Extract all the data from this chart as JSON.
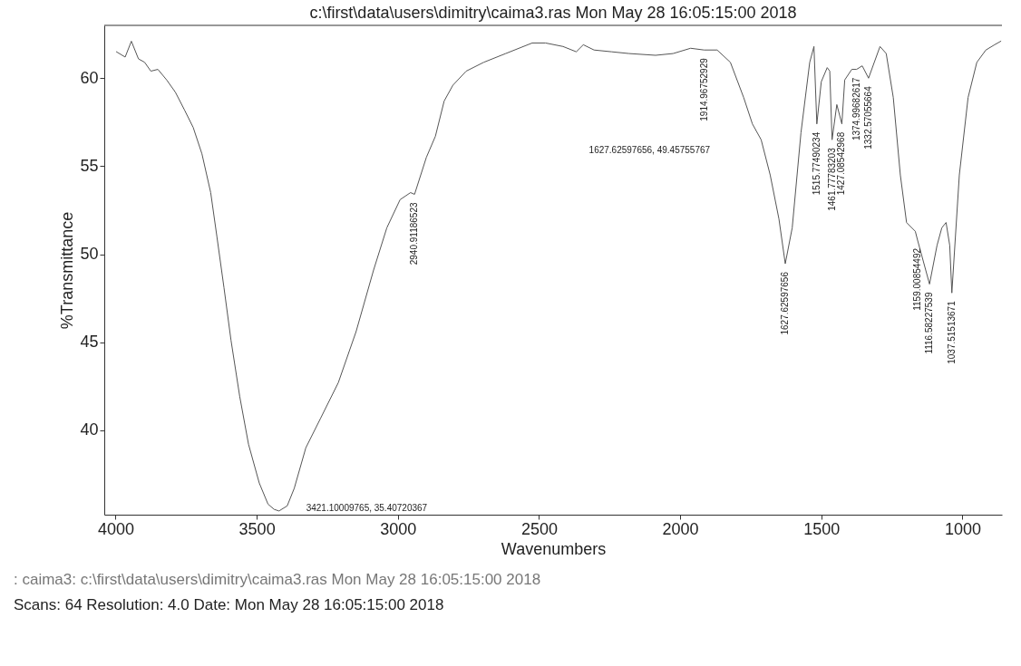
{
  "chart_data": {
    "type": "line",
    "title": "c:\\first\\data\\users\\dimitry\\caima3.ras   Mon May 28 16:05:15:00 2018",
    "xlabel": "Wavenumbers",
    "ylabel": "%Transmittance",
    "x": [
      3997,
      3966,
      3944,
      3919,
      3897,
      3875,
      3850,
      3819,
      3788,
      3756,
      3725,
      3694,
      3663,
      3641,
      3616,
      3591,
      3560,
      3529,
      3491,
      3460,
      3438,
      3421.1,
      3392,
      3367,
      3326,
      3273,
      3211,
      3148,
      3086,
      3039,
      2992,
      2955,
      2940.9,
      2899,
      2867,
      2836,
      2805,
      2758,
      2696,
      2618,
      2524,
      2477,
      2415,
      2368,
      2343,
      2305,
      2243,
      2181,
      2087,
      2025,
      1963,
      1915,
      1869,
      1822,
      1775,
      1744,
      1713,
      1681,
      1650,
      1627.6,
      1603,
      1572,
      1541,
      1526,
      1515.8,
      1500,
      1479,
      1470,
      1461.8,
      1445,
      1427.1,
      1417,
      1392,
      1375,
      1355,
      1332.6,
      1292,
      1270,
      1245,
      1220,
      1198,
      1167,
      1159,
      1116.6,
      1090,
      1073,
      1058,
      1045,
      1037.5,
      1011,
      980,
      949,
      917,
      886,
      864
    ],
    "series": [
      {
        "color": "#555555",
        "values": [
          61.5,
          61.2,
          62.1,
          61.1,
          60.9,
          60.4,
          60.5,
          59.9,
          59.2,
          58.2,
          57.2,
          55.7,
          53.5,
          51.0,
          48.1,
          45.1,
          41.9,
          39.2,
          37.0,
          35.8,
          35.5,
          35.41,
          35.7,
          36.7,
          39.0,
          40.7,
          42.7,
          45.6,
          49.1,
          51.5,
          53.1,
          53.5,
          53.4,
          55.5,
          56.7,
          58.7,
          59.6,
          60.4,
          60.9,
          61.4,
          62.0,
          62.0,
          61.8,
          61.5,
          61.9,
          61.6,
          61.5,
          61.4,
          61.3,
          61.4,
          61.7,
          61.6,
          61.6,
          60.9,
          58.9,
          57.4,
          56.5,
          54.5,
          52.0,
          49.46,
          51.5,
          56.9,
          60.9,
          61.8,
          57.4,
          59.8,
          60.6,
          60.4,
          56.5,
          58.5,
          57.4,
          59.9,
          60.5,
          60.5,
          60.7,
          60.0,
          61.8,
          61.4,
          58.9,
          54.5,
          51.8,
          51.3,
          50.8,
          48.3,
          50.5,
          51.5,
          51.8,
          50.5,
          47.8,
          54.5,
          58.9,
          60.9,
          61.6,
          61.9,
          62.1
        ]
      }
    ],
    "xlim": [
      4040,
      860
    ],
    "ylim": [
      35.2,
      63
    ],
    "xticks": [
      4000,
      3500,
      3000,
      2500,
      2000,
      1500,
      1000
    ],
    "yticks": [
      40,
      45,
      50,
      55,
      60
    ],
    "grid": false,
    "marker": "none",
    "line_style": "solid",
    "annotations": [
      {
        "text": "3421.10009765, 35.40720367",
        "x": 3421.1,
        "y": 35.41
      },
      {
        "text": "2940.91186523",
        "x": 2940.9,
        "y": 53.4
      },
      {
        "text": "1914.96752929",
        "x": 1915,
        "y": 61.6
      },
      {
        "text": "1627.62597656",
        "x": 1627.6,
        "y": 49.46
      },
      {
        "text": "1515.77490234",
        "x": 1515.8,
        "y": 57.4
      },
      {
        "text": "1461.77783203",
        "x": 1461.8,
        "y": 56.5
      },
      {
        "text": "1427.08542968",
        "x": 1427.1,
        "y": 57.4
      },
      {
        "text": "1374.99682617",
        "x": 1375,
        "y": 60.5
      },
      {
        "text": "1332.57055664",
        "x": 1332.6,
        "y": 60.0
      },
      {
        "text": "1159.00854492",
        "x": 1159,
        "y": 50.8
      },
      {
        "text": "1116.58227539",
        "x": 1116.6,
        "y": 48.3
      },
      {
        "text": "1037.51513671",
        "x": 1037.5,
        "y": 47.8
      },
      "1627.62597656, 49.45755767",
      ": caima3: c:\\first\\data\\users\\dimitry\\caima3.ras   Mon May 28 16:05:15:00 2018",
      "Scans: 64   Resolution: 4.0   Date: Mon May 28 16:05:15:00 2018"
    ]
  }
}
